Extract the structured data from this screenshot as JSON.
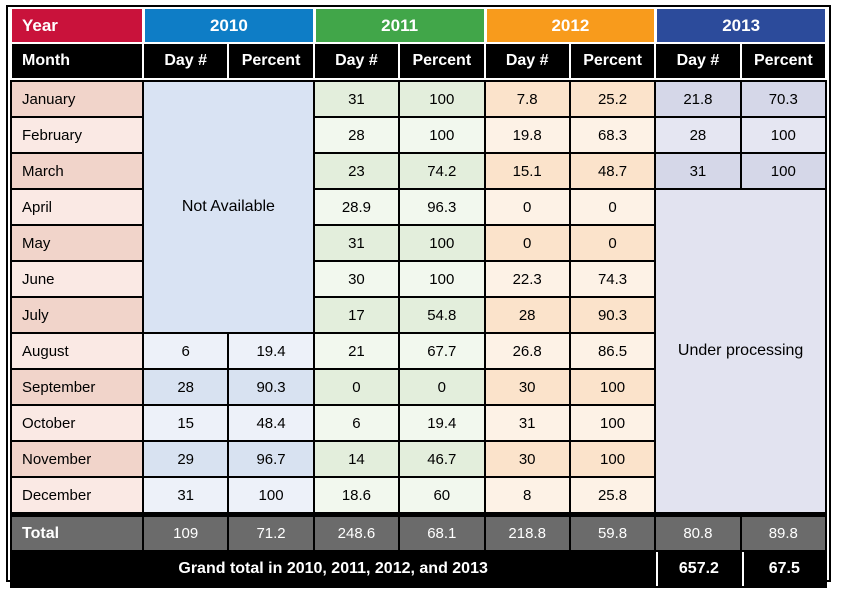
{
  "colors": {
    "year-red": "#C9123B",
    "year-blue": "#0E7DC6",
    "year-green": "#41A649",
    "year-orange": "#F89B1C",
    "year-navy": "#2C4B9B",
    "header-black": "#000000",
    "line-black": "#000000",
    "total-gray": "#6B6B6B",
    "month-dark": "#F1D4CA",
    "month-light": "#FAE9E4",
    "b2010-dark": "#D8E2F1",
    "b2010-light": "#EDF1F9",
    "b2011-dark": "#E3EEDC",
    "b2011-light": "#F2F8EE",
    "b2012-dark": "#FBE3CB",
    "b2012-light": "#FDF2E6",
    "b2013-dark": "#D5D7E8",
    "b2013-light": "#E5E6F2",
    "na-blue": "#D9E3F3",
    "up-lavender": "#E2E3F0",
    "text-black": "#000000",
    "text-white": "#FFFFFF"
  },
  "chart_data": {
    "type": "table",
    "year_label": "Year",
    "years": [
      "2010",
      "2011",
      "2012",
      "2013"
    ],
    "subheaders": {
      "month": "Month",
      "day": "Day #",
      "percent": "Percent"
    },
    "not_available": "Not Available",
    "under_processing": "Under processing",
    "rows": [
      {
        "month": "January",
        "y2010": null,
        "y2011": [
          "31",
          "100"
        ],
        "y2012": [
          "7.8",
          "25.2"
        ],
        "y2013": [
          "21.8",
          "70.3"
        ]
      },
      {
        "month": "February",
        "y2010": null,
        "y2011": [
          "28",
          "100"
        ],
        "y2012": [
          "19.8",
          "68.3"
        ],
        "y2013": [
          "28",
          "100"
        ]
      },
      {
        "month": "March",
        "y2010": null,
        "y2011": [
          "23",
          "74.2"
        ],
        "y2012": [
          "15.1",
          "48.7"
        ],
        "y2013": [
          "31",
          "100"
        ]
      },
      {
        "month": "April",
        "y2010": null,
        "y2011": [
          "28.9",
          "96.3"
        ],
        "y2012": [
          "0",
          "0"
        ],
        "y2013": null
      },
      {
        "month": "May",
        "y2010": null,
        "y2011": [
          "31",
          "100"
        ],
        "y2012": [
          "0",
          "0"
        ],
        "y2013": null
      },
      {
        "month": "June",
        "y2010": null,
        "y2011": [
          "30",
          "100"
        ],
        "y2012": [
          "22.3",
          "74.3"
        ],
        "y2013": null
      },
      {
        "month": "July",
        "y2010": null,
        "y2011": [
          "17",
          "54.8"
        ],
        "y2012": [
          "28",
          "90.3"
        ],
        "y2013": null
      },
      {
        "month": "August",
        "y2010": [
          "6",
          "19.4"
        ],
        "y2011": [
          "21",
          "67.7"
        ],
        "y2012": [
          "26.8",
          "86.5"
        ],
        "y2013": null
      },
      {
        "month": "September",
        "y2010": [
          "28",
          "90.3"
        ],
        "y2011": [
          "0",
          "0"
        ],
        "y2012": [
          "30",
          "100"
        ],
        "y2013": null
      },
      {
        "month": "October",
        "y2010": [
          "15",
          "48.4"
        ],
        "y2011": [
          "6",
          "19.4"
        ],
        "y2012": [
          "31",
          "100"
        ],
        "y2013": null
      },
      {
        "month": "November",
        "y2010": [
          "29",
          "96.7"
        ],
        "y2011": [
          "14",
          "46.7"
        ],
        "y2012": [
          "30",
          "100"
        ],
        "y2013": null
      },
      {
        "month": "December",
        "y2010": [
          "31",
          "100"
        ],
        "y2011": [
          "18.6",
          "60"
        ],
        "y2012": [
          "8",
          "25.8"
        ],
        "y2013": null
      }
    ],
    "total": {
      "label": "Total",
      "values": [
        "109",
        "71.2",
        "248.6",
        "68.1",
        "218.8",
        "59.8",
        "80.8",
        "89.8"
      ]
    },
    "grand_total": {
      "label": "Grand total in 2010, 2011, 2012, and 2013",
      "values": [
        "657.2",
        "67.5"
      ]
    }
  }
}
